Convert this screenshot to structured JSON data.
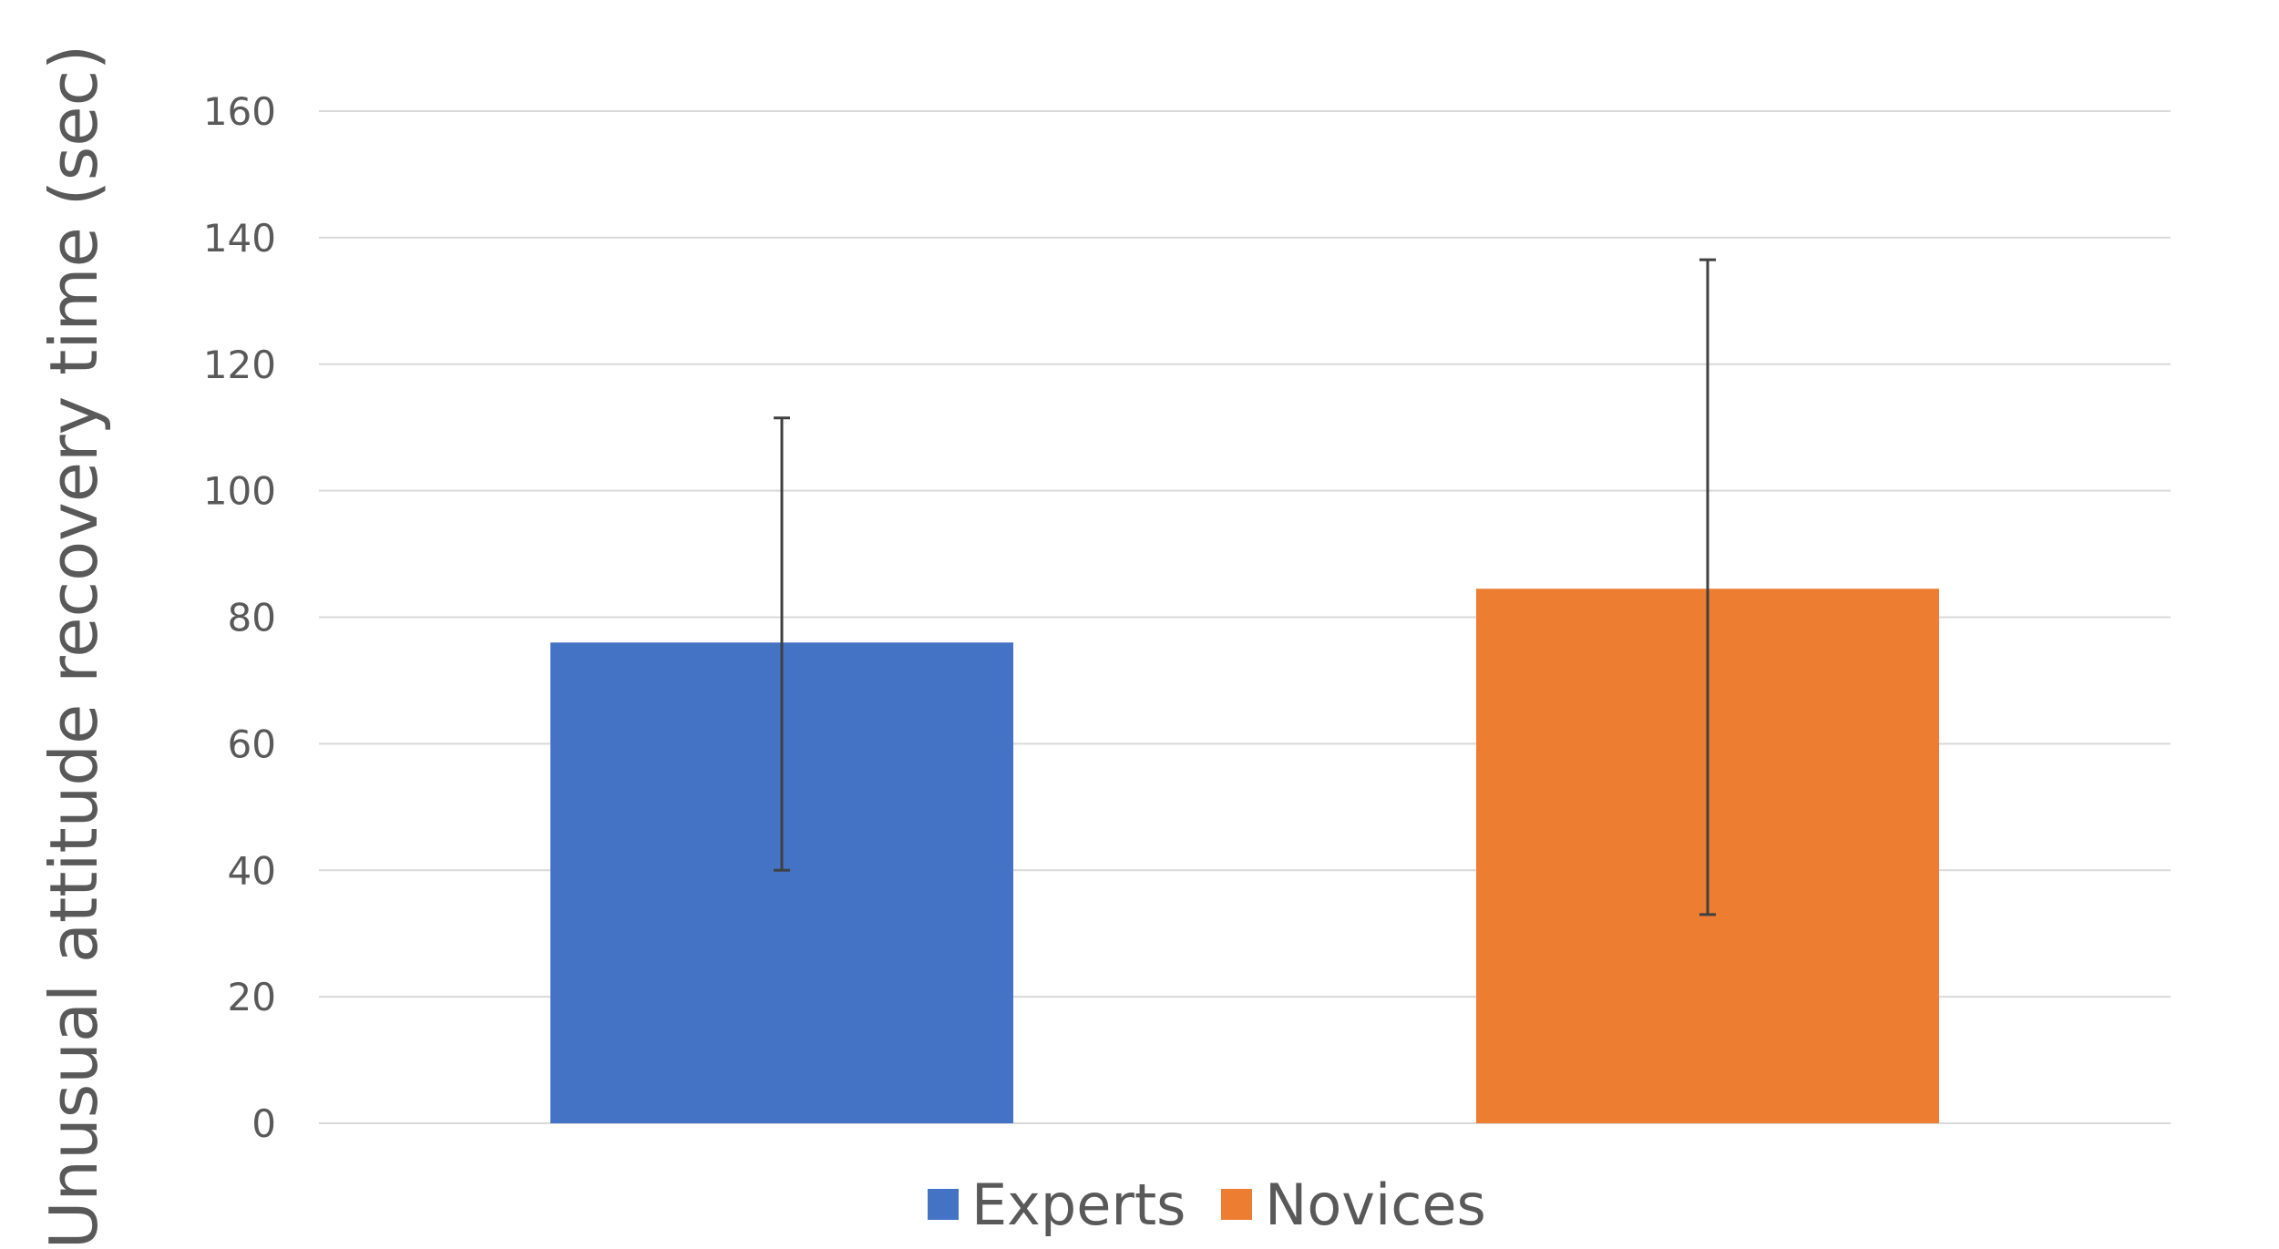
{
  "chart_data": {
    "type": "bar",
    "title": "",
    "xlabel": "",
    "ylabel": "Unusual attitude recovery time (sec)",
    "ylim": [
      0,
      160
    ],
    "yticks": [
      0,
      20,
      40,
      60,
      80,
      100,
      120,
      140,
      160
    ],
    "grid": true,
    "legend_position": "bottom",
    "series": [
      {
        "name": "Experts",
        "value": 76,
        "error_low": 40,
        "error_high": 111.5,
        "color": "#4472C4"
      },
      {
        "name": "Novices",
        "value": 84.5,
        "error_low": 33,
        "error_high": 136.5,
        "color": "#ED7D31"
      }
    ]
  }
}
